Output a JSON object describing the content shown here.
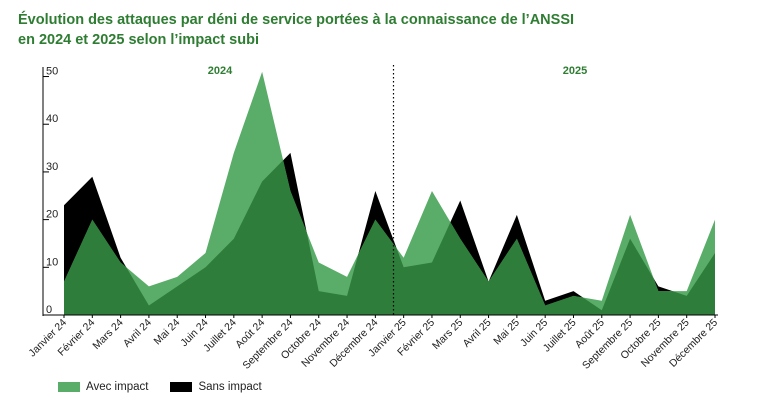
{
  "title_line1": "Évolution des attaques par déni de service portées à la connaissance de l’ANSSI",
  "title_line2": "en 2024 et 2025 selon l’impact subi",
  "chart_data": {
    "type": "area",
    "categories": [
      "Janvier 24",
      "Février 24",
      "Mars 24",
      "Avril 24",
      "Mai 24",
      "Juin 24",
      "Juillet 24",
      "Août 24",
      "Septembre 24",
      "Octobre 24",
      "Novembre 24",
      "Décembre 24",
      "Janvier 25",
      "Février 25",
      "Mars 25",
      "Avril 25",
      "Mai 25",
      "Juin 25",
      "Juillet 25",
      "Août 25",
      "Septembre 25",
      "Octobre 25",
      "Novembre 25",
      "Décembre 25"
    ],
    "series": [
      {
        "name": "Avec impact",
        "color": "#5aad68",
        "values": [
          7,
          20,
          11,
          6,
          8,
          13,
          34,
          51,
          26,
          11,
          8,
          20,
          12,
          26,
          16,
          7,
          16,
          2,
          4,
          3,
          21,
          5,
          5,
          20
        ]
      },
      {
        "name": "Sans impact",
        "color": "#000000",
        "values": [
          23,
          29,
          12,
          2,
          6,
          10,
          16,
          28,
          34,
          5,
          4,
          26,
          10,
          11,
          24,
          7,
          21,
          3,
          5,
          1,
          16,
          6,
          4,
          13
        ]
      }
    ],
    "year_labels": [
      "2024",
      "2025"
    ],
    "yticks": [
      0,
      10,
      20,
      30,
      40,
      50
    ],
    "ylim": [
      0,
      52
    ],
    "legend_position": "bottom-left",
    "grid": false
  }
}
